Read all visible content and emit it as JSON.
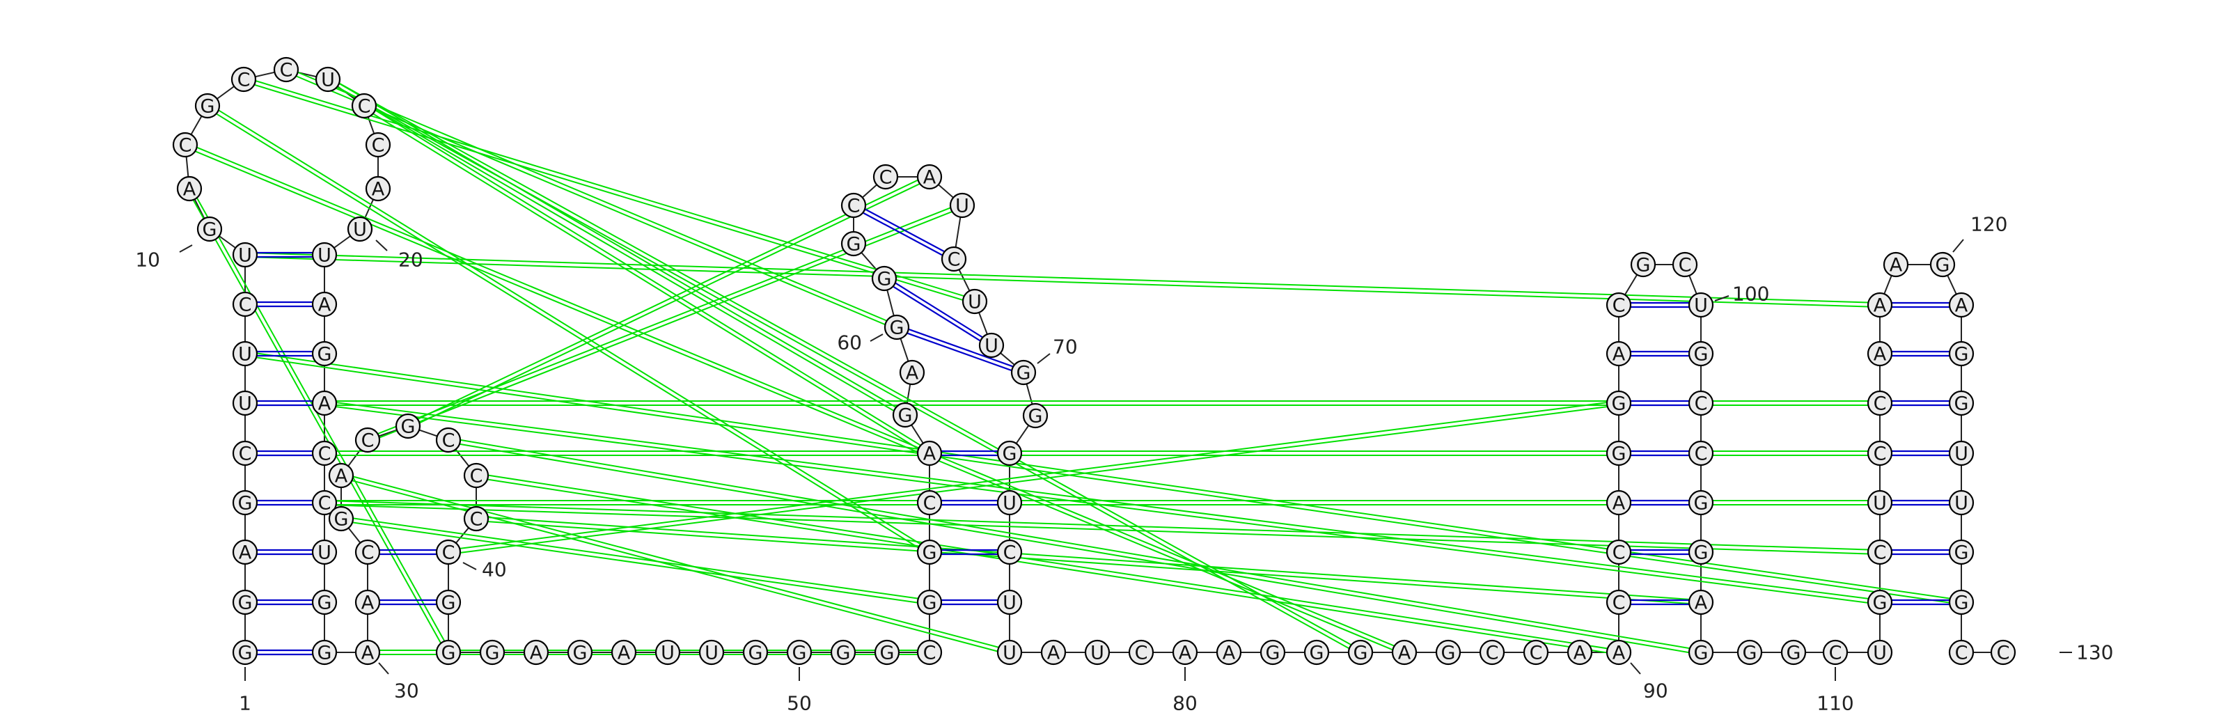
{
  "sequence": "GGAGCUUCUGACGCCUCCAUUAGACCUGGAACGACGCCCCGGGAGAUUGGGGCGGCAGAGGGCCAUCUUGGGUCUUAUCAAGGGAGCCAACCAGGACGCUGCCGGAGGGCUGCUCCAAAGAGGUUGGCC",
  "numbering": [
    "1",
    "10",
    "20",
    "30",
    "40",
    "50",
    "60",
    "70",
    "80",
    "90",
    "100",
    "110",
    "120",
    "130"
  ],
  "colors": {
    "canonical": "#0000cc",
    "gu_wobble": "#0000cc",
    "tertiary": "#00e000",
    "backbone": "#222222"
  }
}
